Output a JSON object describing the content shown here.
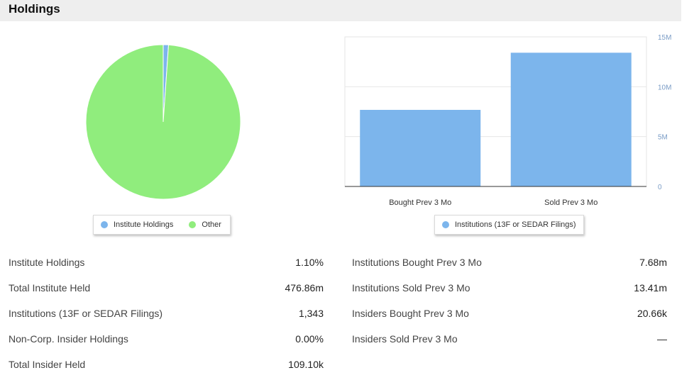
{
  "header": {
    "title": "Holdings"
  },
  "colors": {
    "blue": "#7cb5ec",
    "green": "#90ed7d",
    "grid": "#e6e6e6",
    "axis_label": "#7a9cc6"
  },
  "chart_data": [
    {
      "type": "pie",
      "slices": [
        {
          "name": "Institute Holdings",
          "value": 1.1,
          "color": "#7cb5ec"
        },
        {
          "name": "Other",
          "value": 98.9,
          "color": "#90ed7d"
        }
      ],
      "legend": [
        "Institute Holdings",
        "Other"
      ],
      "legend_position": "bottom"
    },
    {
      "type": "bar",
      "categories": [
        "Bought Prev 3 Mo",
        "Sold Prev 3 Mo"
      ],
      "series": [
        {
          "name": "Institutions (13F or SEDAR Filings)",
          "values": [
            7680000,
            13410000
          ],
          "color": "#7cb5ec"
        }
      ],
      "ylim": [
        0,
        15000000
      ],
      "yticks": [
        0,
        5000000,
        10000000,
        15000000
      ],
      "ytick_labels": [
        "0",
        "5M",
        "10M",
        "15M"
      ],
      "y_axis_side": "right",
      "grid": true,
      "legend_position": "bottom"
    }
  ],
  "stats_left": [
    {
      "label": "Institute Holdings",
      "value": "1.10%"
    },
    {
      "label": "Total Institute Held",
      "value": "476.86m"
    },
    {
      "label": "Institutions (13F or SEDAR Filings)",
      "value": "1,343"
    },
    {
      "label": "Non-Corp. Insider Holdings",
      "value": "0.00%"
    },
    {
      "label": "Total Insider Held",
      "value": "109.10k"
    }
  ],
  "stats_right": [
    {
      "label": "Institutions Bought Prev 3 Mo",
      "value": "7.68m"
    },
    {
      "label": "Institutions Sold Prev 3 Mo",
      "value": "13.41m"
    },
    {
      "label": "Insiders Bought Prev 3 Mo",
      "value": "20.66k"
    },
    {
      "label": "Insiders Sold Prev 3 Mo",
      "value": "—"
    }
  ]
}
